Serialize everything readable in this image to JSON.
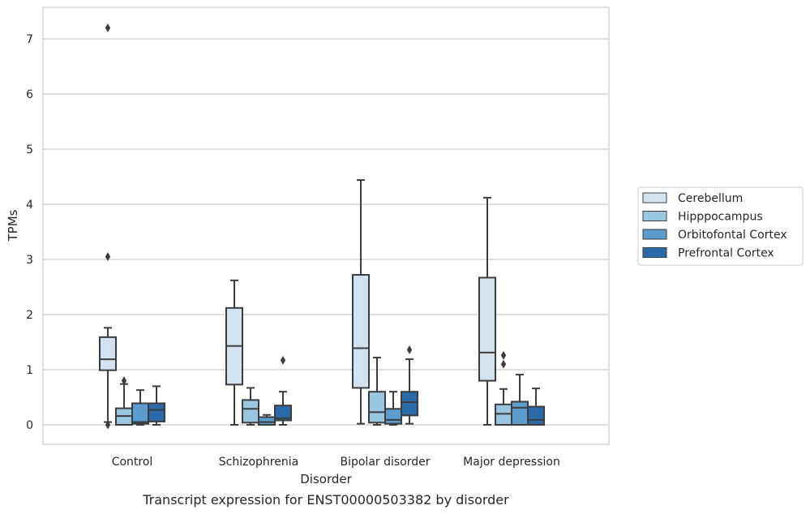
{
  "chart_data": {
    "type": "boxplot",
    "xlabel": "Disorder",
    "ylabel": "TPMs",
    "caption": "Transcript expression for ENST00000503382 by disorder",
    "ylim": [
      -0.35,
      7.6
    ],
    "yticks": [
      0,
      1,
      2,
      3,
      4,
      5,
      6,
      7
    ],
    "grid": "horizontal",
    "legend_placement": "right",
    "categories": [
      "Control",
      "Schizophrenia",
      "Bipolar disorder",
      "Major depression"
    ],
    "series": [
      {
        "name": "Cerebellum",
        "color": "#d1e2f1",
        "boxes": [
          {
            "whislo": 0.05,
            "q1": 0.99,
            "med": 1.19,
            "q3": 1.59,
            "whishi": 1.76,
            "fliers": [
              7.2,
              3.05,
              0.0
            ]
          },
          {
            "whislo": 0.0,
            "q1": 0.73,
            "med": 1.43,
            "q3": 2.12,
            "whishi": 2.62,
            "fliers": []
          },
          {
            "whislo": 0.02,
            "q1": 0.67,
            "med": 1.39,
            "q3": 2.72,
            "whishi": 4.44,
            "fliers": []
          },
          {
            "whislo": 0.0,
            "q1": 0.8,
            "med": 1.31,
            "q3": 2.67,
            "whishi": 4.12,
            "fliers": []
          }
        ]
      },
      {
        "name": "Hipppocampus",
        "color": "#9ac7e0",
        "boxes": [
          {
            "whislo": 0.0,
            "q1": 0.0,
            "med": 0.16,
            "q3": 0.3,
            "whishi": 0.74,
            "fliers": [
              0.8
            ]
          },
          {
            "whislo": 0.0,
            "q1": 0.04,
            "med": 0.29,
            "q3": 0.45,
            "whishi": 0.67,
            "fliers": []
          },
          {
            "whislo": 0.0,
            "q1": 0.04,
            "med": 0.23,
            "q3": 0.6,
            "whishi": 1.22,
            "fliers": []
          },
          {
            "whislo": 0.0,
            "q1": 0.0,
            "med": 0.2,
            "q3": 0.37,
            "whishi": 0.65,
            "fliers": [
              1.26,
              1.1
            ]
          }
        ]
      },
      {
        "name": "Orbitofontal Cortex",
        "color": "#5a9dce",
        "boxes": [
          {
            "whislo": 0.0,
            "q1": 0.02,
            "med": 0.05,
            "q3": 0.39,
            "whishi": 0.63,
            "fliers": []
          },
          {
            "whislo": 0.0,
            "q1": 0.0,
            "med": 0.05,
            "q3": 0.14,
            "whishi": 0.18,
            "fliers": []
          },
          {
            "whislo": 0.0,
            "q1": 0.02,
            "med": 0.09,
            "q3": 0.29,
            "whishi": 0.6,
            "fliers": []
          },
          {
            "whislo": 0.0,
            "q1": 0.0,
            "med": 0.31,
            "q3": 0.42,
            "whishi": 0.91,
            "fliers": []
          }
        ]
      },
      {
        "name": "Prefrontal Cortex",
        "color": "#2b6aa8",
        "boxes": [
          {
            "whislo": 0.0,
            "q1": 0.06,
            "med": 0.27,
            "q3": 0.39,
            "whishi": 0.7,
            "fliers": []
          },
          {
            "whislo": 0.0,
            "q1": 0.08,
            "med": 0.12,
            "q3": 0.35,
            "whishi": 0.6,
            "fliers": [
              1.17
            ]
          },
          {
            "whislo": 0.02,
            "q1": 0.17,
            "med": 0.41,
            "q3": 0.6,
            "whishi": 1.19,
            "fliers": [
              1.36
            ]
          },
          {
            "whislo": 0.0,
            "q1": 0.0,
            "med": 0.09,
            "q3": 0.33,
            "whishi": 0.66,
            "fliers": []
          }
        ]
      }
    ]
  }
}
